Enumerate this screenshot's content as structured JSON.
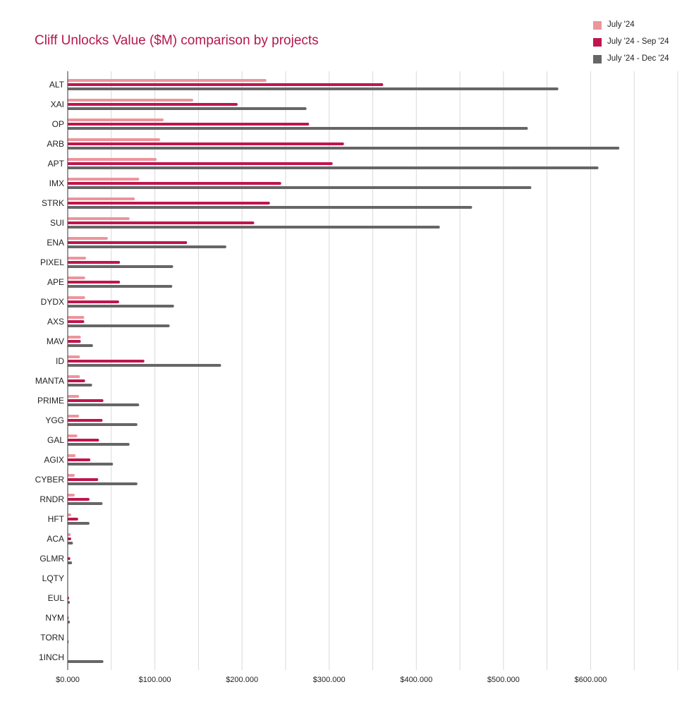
{
  "chart_data": {
    "type": "bar",
    "orientation": "horizontal",
    "title": "Cliff Unlocks Value ($M) comparison by projects",
    "xlabel": "",
    "ylabel": "",
    "xlim": [
      0,
      700
    ],
    "grid": true,
    "legend_position": "top-right",
    "x_ticks": [
      0,
      100,
      200,
      300,
      400,
      500,
      600
    ],
    "x_tick_labels": [
      "$0.000",
      "$100.000",
      "$200.000",
      "$300.000",
      "$400.000",
      "$500.000",
      "$600.000"
    ],
    "categories": [
      "ALT",
      "XAI",
      "OP",
      "ARB",
      "APT",
      "IMX",
      "STRK",
      "SUI",
      "ENA",
      "PIXEL",
      "APE",
      "DYDX",
      "AXS",
      "MAV",
      "ID",
      "MANTA",
      "PRIME",
      "YGG",
      "GAL",
      "AGIX",
      "CYBER",
      "RNDR",
      "HFT",
      "ACA",
      "GLMR",
      "LQTY",
      "EUL",
      "NYM",
      "TORN",
      "1INCH"
    ],
    "series": [
      {
        "name": "July '24",
        "color": "#ee949b",
        "values": [
          228,
          144,
          110,
          106,
          102,
          82,
          77,
          71,
          46,
          21,
          20,
          20,
          19,
          15,
          14,
          14,
          13,
          13,
          11,
          9,
          8,
          8,
          4,
          3.5,
          0.5,
          0,
          0,
          0,
          0,
          0
        ]
      },
      {
        "name": "July '24 - Sep '24",
        "color": "#c0154f",
        "values": [
          362,
          195,
          277,
          317,
          304,
          245,
          232,
          214,
          137,
          60,
          60,
          59,
          19,
          15,
          88,
          20,
          41,
          40,
          36,
          26,
          35,
          25,
          12,
          4,
          3,
          0,
          1.5,
          1,
          0,
          0
        ]
      },
      {
        "name": "July '24 - Dec '24",
        "color": "#666666",
        "values": [
          563,
          274,
          528,
          633,
          609,
          532,
          464,
          427,
          182,
          121,
          120,
          122,
          117,
          29,
          176,
          28,
          82,
          80,
          71,
          52,
          80,
          40,
          25,
          6,
          5,
          0,
          2.5,
          2.5,
          1,
          41
        ]
      }
    ]
  }
}
